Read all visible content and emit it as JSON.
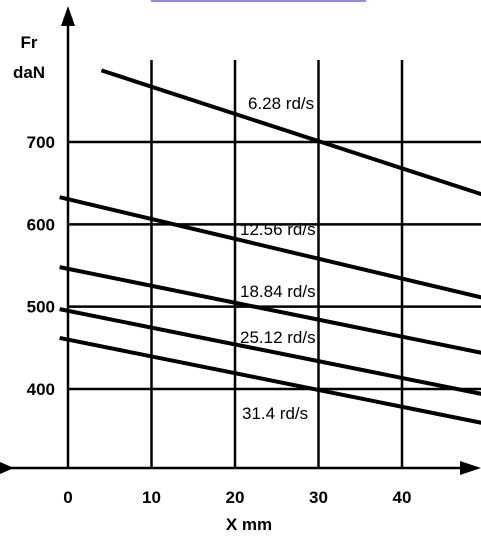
{
  "chart_data": {
    "type": "line",
    "xlabel": "X mm",
    "ylabel_line1": "Fr",
    "ylabel_line2": "daN",
    "xlim": [
      0,
      48
    ],
    "ylim": [
      300,
      850
    ],
    "x_ticks": [
      0,
      10,
      20,
      30,
      40
    ],
    "y_ticks": [
      400,
      500,
      600,
      700
    ],
    "x_tick_labels": [
      "0",
      "10",
      "20",
      "30",
      "40"
    ],
    "y_tick_labels": [
      "400",
      "500",
      "600",
      "700"
    ],
    "grid": true,
    "series": [
      {
        "name": "6.28 rd/s",
        "x": [
          4,
          50
        ],
        "y": [
          787,
          635
        ]
      },
      {
        "name": "12.56 rd/s",
        "x": [
          -1,
          50
        ],
        "y": [
          633,
          510
        ]
      },
      {
        "name": "18.84 rd/s",
        "x": [
          -1,
          50
        ],
        "y": [
          548,
          443
        ]
      },
      {
        "name": "25.12 rd/s",
        "x": [
          -1,
          50
        ],
        "y": [
          497,
          393
        ]
      },
      {
        "name": "31.4 rd/s",
        "x": [
          -1,
          50
        ],
        "y": [
          462,
          358
        ]
      }
    ]
  }
}
